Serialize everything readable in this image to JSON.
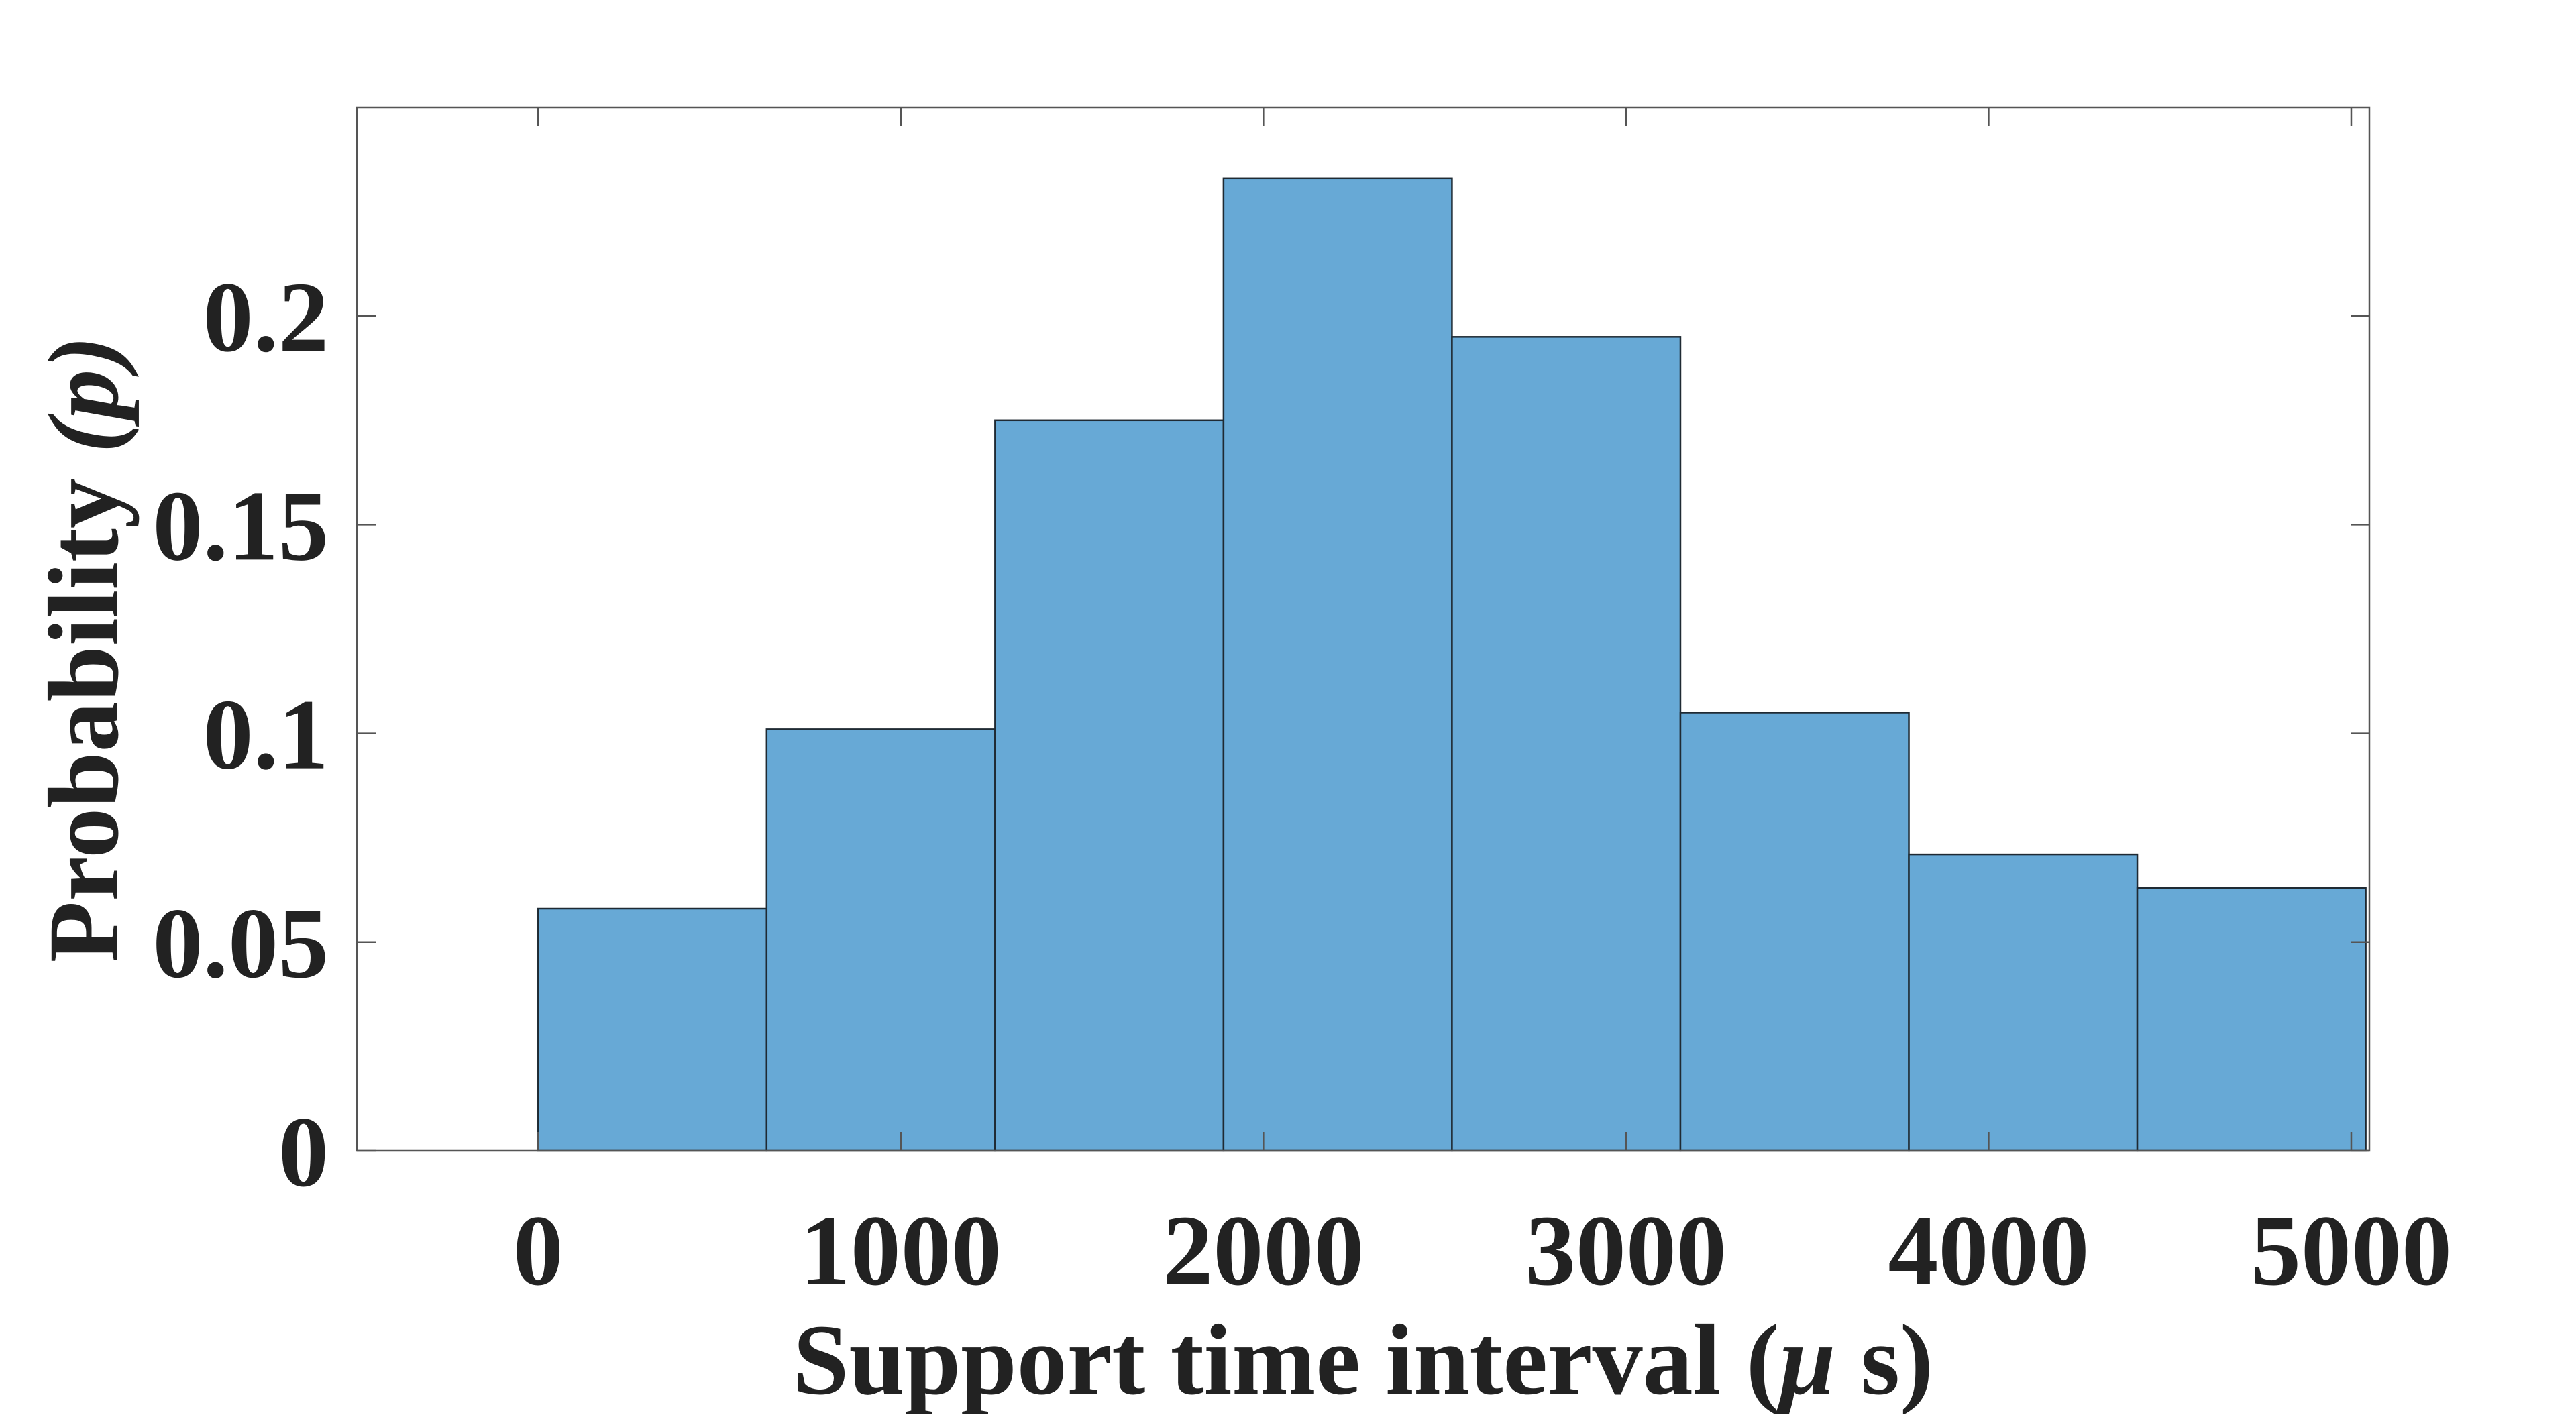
{
  "chart_data": {
    "type": "bar",
    "title": "",
    "xlabel": "Support time interval (",
    "xlabel_mu": "μ",
    "xlabel_end": " s)",
    "ylabel": "Probability ",
    "ylabel_var": "(p)",
    "bin_edges": [
      0,
      630,
      1260,
      1890,
      2520,
      3150,
      3780,
      4410,
      5040
    ],
    "values": [
      0.058,
      0.101,
      0.175,
      0.233,
      0.195,
      0.105,
      0.071,
      0.063
    ],
    "xlim": [
      -500,
      5050
    ],
    "ylim": [
      0,
      0.25
    ],
    "x_ticks": [
      0,
      1000,
      2000,
      3000,
      4000,
      5000
    ],
    "x_tick_labels": [
      "0",
      "1000",
      "2000",
      "3000",
      "4000",
      "5000"
    ],
    "y_ticks": [
      0,
      0.05,
      0.1,
      0.15,
      0.2
    ],
    "y_tick_labels": [
      "0",
      "0.05",
      "0.1",
      "0.15",
      "0.2"
    ],
    "grid": false,
    "legend": "none",
    "colors": {
      "bar_fill": "#67a9d6",
      "bar_edge": "#1f2a33",
      "axis": "#555555",
      "text": "#222222"
    }
  }
}
